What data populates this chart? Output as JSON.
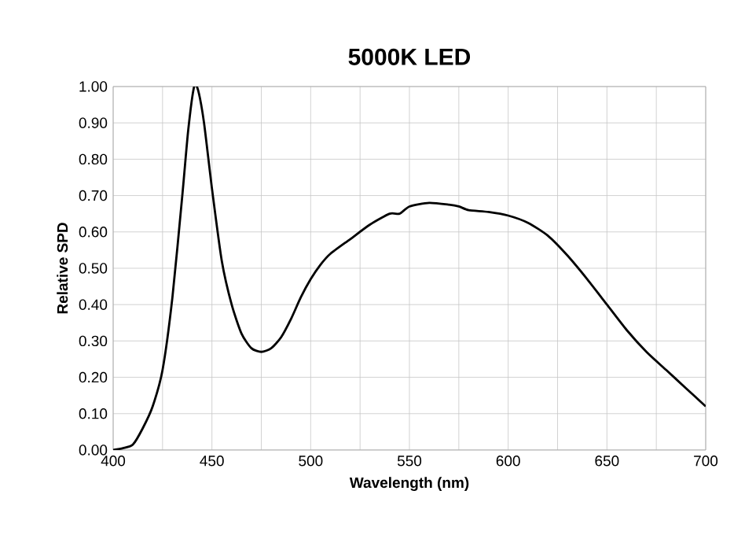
{
  "chart_data": {
    "type": "line",
    "title": "5000K LED",
    "xlabel": "Wavelength (nm)",
    "ylabel": "Relative SPD",
    "xlim": [
      400,
      700
    ],
    "ylim": [
      0,
      1
    ],
    "xticks": [
      400,
      {
        "value": 425,
        "label": null
      },
      450,
      {
        "value": 475,
        "label": null
      },
      500,
      {
        "value": 525,
        "label": null
      },
      550,
      {
        "value": 575,
        "label": null
      },
      600,
      {
        "value": 625,
        "label": null
      },
      650,
      {
        "value": 675,
        "label": null
      },
      700
    ],
    "yticks": [
      {
        "value": 0,
        "label": "0.00"
      },
      {
        "value": 0.1,
        "label": "0.10"
      },
      {
        "value": 0.2,
        "label": "0.20"
      },
      {
        "value": 0.3,
        "label": "0.30"
      },
      {
        "value": 0.4,
        "label": "0.40"
      },
      {
        "value": 0.5,
        "label": "0.50"
      },
      {
        "value": 0.6,
        "label": "0.60"
      },
      {
        "value": 0.7,
        "label": "0.70"
      },
      {
        "value": 0.8,
        "label": "0.80"
      },
      {
        "value": 0.9,
        "label": "0.90"
      },
      {
        "value": 1,
        "label": "1.00"
      }
    ],
    "grid": true,
    "marker": "none",
    "line_style": "solid",
    "series": [
      {
        "color": "#000000",
        "x": [
          400,
          405,
          410,
          415,
          420,
          425,
          430,
          435,
          438,
          441,
          443,
          446,
          450,
          455,
          460,
          465,
          470,
          475,
          480,
          485,
          490,
          495,
          500,
          505,
          510,
          520,
          530,
          540,
          545,
          550,
          560,
          570,
          575,
          580,
          590,
          600,
          610,
          620,
          630,
          640,
          650,
          660,
          670,
          680,
          690,
          700
        ],
        "values": [
          0.0,
          0.005,
          0.015,
          0.06,
          0.12,
          0.22,
          0.42,
          0.7,
          0.88,
          1.0,
          0.99,
          0.9,
          0.72,
          0.52,
          0.4,
          0.32,
          0.28,
          0.27,
          0.28,
          0.31,
          0.36,
          0.42,
          0.47,
          0.51,
          0.54,
          0.58,
          0.62,
          0.65,
          0.65,
          0.67,
          0.68,
          0.675,
          0.67,
          0.66,
          0.655,
          0.645,
          0.625,
          0.59,
          0.535,
          0.47,
          0.4,
          0.33,
          0.27,
          0.22,
          0.17,
          0.12
        ]
      }
    ]
  }
}
